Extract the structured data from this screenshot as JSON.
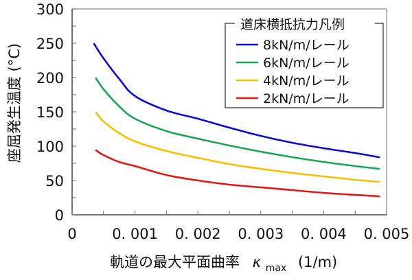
{
  "chart_data": {
    "type": "line",
    "title": "",
    "xlabel": "軌道の最大平面曲率",
    "xlabel_symbol": "κ",
    "xlabel_subscript": "max",
    "xlabel_unit": "(1/m)",
    "ylabel": "座屈発生温度 (°C)",
    "xlim": [
      0,
      0.005
    ],
    "ylim": [
      0,
      300
    ],
    "xticks": [
      0,
      0.001,
      0.002,
      0.003,
      0.004,
      0.005
    ],
    "xtick_labels": [
      "0",
      "0. 001",
      "0. 002",
      "0. 003",
      "0. 004",
      "0. 005"
    ],
    "yticks": [
      0,
      50,
      100,
      150,
      200,
      250,
      300
    ],
    "ytick_labels": [
      "0",
      "50",
      "100",
      "150",
      "200",
      "250",
      "300"
    ],
    "grid": false,
    "legend": {
      "title": "道床横抵抗力凡例",
      "placement": "top-right"
    },
    "series": [
      {
        "name": "8kN/m/レール",
        "color": "#0a0ad0",
        "x": [
          0.00035,
          0.0005,
          0.00075,
          0.001,
          0.0015,
          0.002,
          0.0025,
          0.003,
          0.0035,
          0.004,
          0.0045,
          0.00488
        ],
        "y": [
          249,
          228,
          198,
          173,
          152,
          140,
          127,
          115,
          105,
          97,
          90,
          84
        ]
      },
      {
        "name": "6kN/m/レール",
        "color": "#1aa655",
        "x": [
          0.00038,
          0.0005,
          0.00075,
          0.001,
          0.0015,
          0.002,
          0.0025,
          0.003,
          0.0035,
          0.004,
          0.0045,
          0.00488
        ],
        "y": [
          199,
          183,
          158,
          140,
          122,
          111,
          101,
          92,
          84,
          77,
          71,
          67
        ]
      },
      {
        "name": "4kN/m/レール",
        "color": "#f5c000",
        "x": [
          0.00038,
          0.0005,
          0.00075,
          0.001,
          0.0015,
          0.002,
          0.0025,
          0.003,
          0.0035,
          0.004,
          0.0045,
          0.00488
        ],
        "y": [
          149,
          136,
          119,
          107,
          93,
          83,
          74,
          67,
          61,
          56,
          51,
          48
        ]
      },
      {
        "name": "2kN/m/レール",
        "color": "#e01818",
        "x": [
          0.00038,
          0.0005,
          0.00075,
          0.001,
          0.0015,
          0.002,
          0.0025,
          0.003,
          0.0035,
          0.004,
          0.0045,
          0.00488
        ],
        "y": [
          94,
          87,
          77,
          71,
          58,
          50,
          44,
          40,
          36,
          32,
          29,
          27
        ]
      }
    ]
  }
}
